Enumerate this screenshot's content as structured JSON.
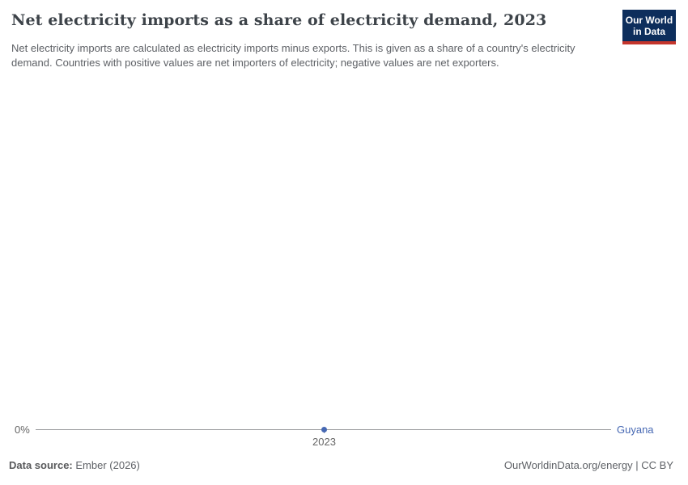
{
  "header": {
    "title": "Net electricity imports as a share of electricity demand, 2023",
    "subtitle": "Net electricity imports are calculated as electricity imports minus exports. This is given as a share of a country's electricity demand. Countries with positive values are net importers of electricity; negative values are net exporters.",
    "logo": {
      "line1": "Our World",
      "line2": "in Data",
      "bg_color": "#0d2e5c",
      "stripe_color": "#c4352c",
      "text_color": "#ffffff"
    }
  },
  "chart": {
    "y_axis_label": "0%",
    "x_tick_label": "2023",
    "entity_label": "Guyana",
    "entity_color": "#4668b3",
    "gridline_color": "#9d9fa1",
    "axis_text_color": "#666666"
  },
  "chart_data": {
    "type": "line",
    "title": "Net electricity imports as a share of electricity demand, 2023",
    "xlabel": "",
    "ylabel": "",
    "unit": "%",
    "x": [
      2023
    ],
    "series": [
      {
        "name": "Guyana",
        "values": [
          0
        ]
      }
    ],
    "xtick_labels": [
      "2023"
    ],
    "ytick_labels": [
      "0%"
    ],
    "ylim_shown_value": 0,
    "grid": "zero-line-only",
    "legend_position": "end-of-line-label"
  },
  "footer": {
    "source_label": "Data source:",
    "source_value": "Ember (2026)",
    "url_text": "OurWorldinData.org/energy",
    "separator": "|",
    "license": "CC BY"
  }
}
